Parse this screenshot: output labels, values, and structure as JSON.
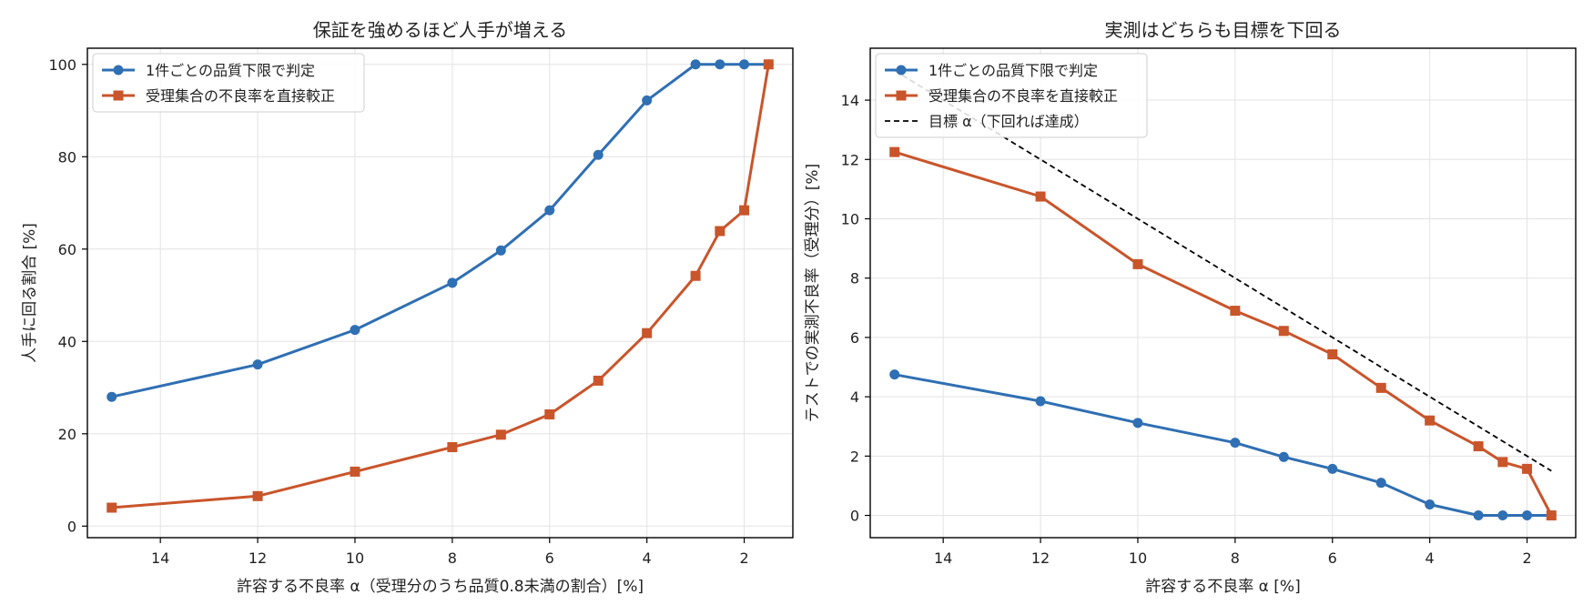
{
  "chart_data": [
    {
      "type": "line",
      "title": "保証を強めるほど人手が増える",
      "xlabel": "許容する不良率 α（受理分のうち品質0.8未満の割合）[%]",
      "ylabel": "人手に回る割合 [%]",
      "x_reversed": true,
      "xlim": [
        15.5,
        1.0
      ],
      "ylim": [
        -2.5,
        103.5
      ],
      "xticks": [
        14,
        12,
        10,
        8,
        6,
        4,
        2
      ],
      "yticks": [
        0,
        20,
        40,
        60,
        80,
        100
      ],
      "grid": true,
      "legend_position": "top-left",
      "x": [
        15,
        12,
        10,
        8,
        7,
        6,
        5,
        4,
        3,
        2.5,
        2,
        1.5
      ],
      "series": [
        {
          "name": "1件ごとの品質下限で判定",
          "color": "#2f6fb3",
          "marker": "circle",
          "values": [
            28.0,
            35.0,
            42.5,
            52.7,
            59.7,
            68.4,
            80.4,
            92.2,
            100,
            100,
            100,
            100
          ]
        },
        {
          "name": "受理集合の不良率を直接較正",
          "color": "#c9552b",
          "marker": "square",
          "values": [
            4.0,
            6.5,
            11.8,
            17.1,
            19.8,
            24.2,
            31.5,
            41.8,
            54.2,
            63.9,
            68.4,
            100
          ]
        }
      ]
    },
    {
      "type": "line",
      "title": "実測はどちらも目標を下回る",
      "xlabel": "許容する不良率 α [%]",
      "ylabel": "テストでの実測不良率（受理分）[%]",
      "x_reversed": true,
      "xlim": [
        15.5,
        1.0
      ],
      "ylim": [
        -0.75,
        15.75
      ],
      "xticks": [
        14,
        12,
        10,
        8,
        6,
        4,
        2
      ],
      "yticks": [
        0,
        2,
        4,
        6,
        8,
        10,
        12,
        14
      ],
      "grid": true,
      "legend_position": "top-left",
      "x": [
        15,
        12,
        10,
        8,
        7,
        6,
        5,
        4,
        3,
        2.5,
        2,
        1.5
      ],
      "series": [
        {
          "name": "1件ごとの品質下限で判定",
          "color": "#2f6fb3",
          "marker": "circle",
          "values": [
            4.75,
            3.85,
            3.12,
            2.45,
            1.97,
            1.57,
            1.1,
            0.37,
            0.0,
            0.0,
            0.0,
            0.0
          ]
        },
        {
          "name": "受理集合の不良率を直接較正",
          "color": "#c9552b",
          "marker": "square",
          "values": [
            12.25,
            10.75,
            8.47,
            6.9,
            6.22,
            5.43,
            4.3,
            3.2,
            2.33,
            1.8,
            1.57,
            0.0
          ]
        },
        {
          "name": "目標 α（下回れば達成）",
          "color": "#000000",
          "marker": "none",
          "dashed": true,
          "values": [
            15,
            12,
            10,
            8,
            7,
            6,
            5,
            4,
            3,
            2.5,
            2,
            1.5
          ]
        }
      ]
    }
  ]
}
